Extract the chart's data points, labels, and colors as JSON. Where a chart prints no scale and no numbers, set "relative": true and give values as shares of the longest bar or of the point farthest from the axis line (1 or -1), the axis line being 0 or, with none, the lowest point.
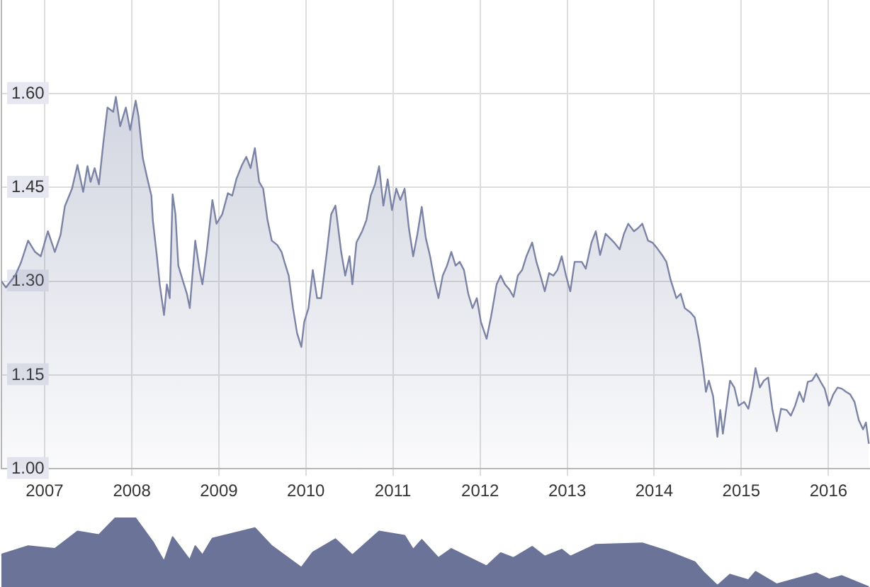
{
  "chart_data": [
    {
      "type": "area",
      "color": "#7c84a6",
      "grid": true,
      "xlim": [
        "2007-01-01",
        "2016-12-22"
      ],
      "ylim": [
        1.0,
        1.75
      ],
      "xticks": [
        {
          "value": "2007-07-01",
          "label": "2007"
        },
        {
          "value": "2008-07-01",
          "label": "2008"
        },
        {
          "value": "2009-07-01",
          "label": "2009"
        },
        {
          "value": "2010-07-01",
          "label": "2010"
        },
        {
          "value": "2011-07-01",
          "label": "2011"
        },
        {
          "value": "2012-07-01",
          "label": "2012"
        },
        {
          "value": "2013-07-01",
          "label": "2013"
        },
        {
          "value": "2014-07-01",
          "label": "2014"
        },
        {
          "value": "2015-07-01",
          "label": "2015"
        },
        {
          "value": "2016-07-01",
          "label": "2016"
        }
      ],
      "yticks": [
        {
          "value": 1.0,
          "label": "1.00"
        },
        {
          "value": 1.15,
          "label": "1.15"
        },
        {
          "value": 1.3,
          "label": "1.30"
        },
        {
          "value": 1.45,
          "label": "1.45"
        },
        {
          "value": 1.6,
          "label": "1.60"
        }
      ],
      "x": [
        "2007-01-01",
        "2007-01-20",
        "2007-03-01",
        "2007-03-24",
        "2007-04-23",
        "2007-05-22",
        "2007-06-15",
        "2007-07-15",
        "2007-08-13",
        "2007-09-06",
        "2007-09-24",
        "2007-10-24",
        "2007-11-16",
        "2007-12-10",
        "2007-12-28",
        "2008-01-10",
        "2008-01-27",
        "2008-02-14",
        "2008-03-03",
        "2008-03-21",
        "2008-04-14",
        "2008-04-25",
        "2008-05-13",
        "2008-06-06",
        "2008-06-24",
        "2008-07-17",
        "2008-07-29",
        "2008-08-16",
        "2008-09-03",
        "2008-09-21",
        "2008-09-27",
        "2008-10-14",
        "2008-10-26",
        "2008-11-13",
        "2008-11-25",
        "2008-12-07",
        "2008-12-19",
        "2008-12-31",
        "2009-01-12",
        "2009-01-30",
        "2009-02-17",
        "2009-03-01",
        "2009-03-24",
        "2009-04-11",
        "2009-04-23",
        "2009-05-11",
        "2009-06-04",
        "2009-06-21",
        "2009-07-15",
        "2009-08-08",
        "2009-08-26",
        "2009-09-13",
        "2009-10-06",
        "2009-10-24",
        "2009-11-11",
        "2009-11-29",
        "2009-12-17",
        "2010-01-03",
        "2010-01-21",
        "2010-02-08",
        "2010-03-03",
        "2010-03-21",
        "2010-04-02",
        "2010-04-20",
        "2010-05-08",
        "2010-05-25",
        "2010-06-12",
        "2010-06-24",
        "2010-07-12",
        "2010-07-30",
        "2010-08-17",
        "2010-09-03",
        "2010-09-27",
        "2010-10-15",
        "2010-11-02",
        "2010-11-26",
        "2010-12-13",
        "2010-12-31",
        "2011-01-12",
        "2011-01-29",
        "2011-02-22",
        "2011-03-12",
        "2011-03-30",
        "2011-04-17",
        "2011-05-04",
        "2011-05-22",
        "2011-06-09",
        "2011-06-27",
        "2011-07-15",
        "2011-08-01",
        "2011-08-19",
        "2011-09-06",
        "2011-09-24",
        "2011-10-12",
        "2011-10-30",
        "2011-11-16",
        "2011-12-04",
        "2011-12-22",
        "2012-01-08",
        "2012-01-26",
        "2012-02-13",
        "2012-03-02",
        "2012-03-20",
        "2012-04-06",
        "2012-04-24",
        "2012-05-12",
        "2012-05-30",
        "2012-06-17",
        "2012-07-04",
        "2012-07-28",
        "2012-08-15",
        "2012-09-08",
        "2012-09-25",
        "2012-10-13",
        "2012-10-31",
        "2012-11-18",
        "2012-12-06",
        "2012-12-24",
        "2013-01-11",
        "2013-02-04",
        "2013-02-22",
        "2013-03-11",
        "2013-03-29",
        "2013-04-16",
        "2013-05-04",
        "2013-05-21",
        "2013-06-08",
        "2013-06-26",
        "2013-07-14",
        "2013-08-01",
        "2013-08-31",
        "2013-09-17",
        "2013-10-11",
        "2013-10-29",
        "2013-11-16",
        "2013-12-09",
        "2013-12-27",
        "2014-01-14",
        "2014-02-06",
        "2014-02-24",
        "2014-03-14",
        "2014-04-07",
        "2014-04-24",
        "2014-05-12",
        "2014-06-05",
        "2014-06-23",
        "2014-07-11",
        "2014-08-03",
        "2014-08-21",
        "2014-09-08",
        "2014-10-02",
        "2014-10-20",
        "2014-11-06",
        "2014-11-30",
        "2014-12-18",
        "2015-01-05",
        "2015-01-22",
        "2015-02-03",
        "2015-02-15",
        "2015-03-05",
        "2015-03-23",
        "2015-04-04",
        "2015-04-15",
        "2015-05-03",
        "2015-05-15",
        "2015-06-02",
        "2015-06-20",
        "2015-07-13",
        "2015-07-31",
        "2015-08-18",
        "2015-08-30",
        "2015-09-17",
        "2015-10-04",
        "2015-10-22",
        "2015-11-09",
        "2015-11-27",
        "2015-12-15",
        "2016-01-07",
        "2016-01-25",
        "2016-02-12",
        "2016-03-01",
        "2016-03-18",
        "2016-04-05",
        "2016-04-23",
        "2016-05-11",
        "2016-05-29",
        "2016-06-15",
        "2016-07-03",
        "2016-07-21",
        "2016-08-08",
        "2016-08-26",
        "2016-09-13",
        "2016-09-30",
        "2016-10-18",
        "2016-11-05",
        "2016-11-23",
        "2016-12-05",
        "2016-12-17"
      ],
      "values": [
        1.3,
        1.29,
        1.31,
        1.33,
        1.365,
        1.347,
        1.34,
        1.38,
        1.347,
        1.374,
        1.42,
        1.448,
        1.486,
        1.443,
        1.484,
        1.459,
        1.481,
        1.455,
        1.52,
        1.578,
        1.571,
        1.595,
        1.548,
        1.578,
        1.542,
        1.589,
        1.564,
        1.497,
        1.466,
        1.437,
        1.398,
        1.34,
        1.295,
        1.246,
        1.295,
        1.273,
        1.439,
        1.407,
        1.325,
        1.302,
        1.28,
        1.257,
        1.365,
        1.318,
        1.295,
        1.347,
        1.43,
        1.392,
        1.407,
        1.441,
        1.437,
        1.464,
        1.486,
        1.499,
        1.481,
        1.513,
        1.459,
        1.448,
        1.398,
        1.365,
        1.358,
        1.347,
        1.331,
        1.309,
        1.257,
        1.217,
        1.195,
        1.235,
        1.257,
        1.318,
        1.273,
        1.273,
        1.347,
        1.407,
        1.421,
        1.347,
        1.309,
        1.34,
        1.295,
        1.362,
        1.38,
        1.398,
        1.437,
        1.455,
        1.484,
        1.421,
        1.463,
        1.414,
        1.448,
        1.43,
        1.448,
        1.385,
        1.34,
        1.376,
        1.419,
        1.369,
        1.34,
        1.302,
        1.273,
        1.309,
        1.325,
        1.347,
        1.325,
        1.331,
        1.318,
        1.28,
        1.257,
        1.273,
        1.235,
        1.208,
        1.242,
        1.295,
        1.309,
        1.295,
        1.287,
        1.275,
        1.309,
        1.318,
        1.34,
        1.362,
        1.331,
        1.309,
        1.284,
        1.313,
        1.309,
        1.318,
        1.34,
        1.309,
        1.284,
        1.331,
        1.331,
        1.32,
        1.362,
        1.38,
        1.342,
        1.376,
        1.369,
        1.362,
        1.351,
        1.376,
        1.392,
        1.38,
        1.385,
        1.392,
        1.365,
        1.362,
        1.354,
        1.342,
        1.331,
        1.302,
        1.273,
        1.28,
        1.257,
        1.25,
        1.242,
        1.206,
        1.161,
        1.123,
        1.141,
        1.116,
        1.051,
        1.094,
        1.056,
        1.107,
        1.141,
        1.13,
        1.101,
        1.107,
        1.096,
        1.13,
        1.161,
        1.13,
        1.141,
        1.146,
        1.094,
        1.06,
        1.096,
        1.094,
        1.085,
        1.101,
        1.123,
        1.107,
        1.139,
        1.141,
        1.152,
        1.139,
        1.128,
        1.101,
        1.119,
        1.13,
        1.128,
        1.123,
        1.119,
        1.107,
        1.078,
        1.063,
        1.074,
        1.04
      ]
    },
    {
      "type": "area",
      "color": "#6b7398",
      "relative": true,
      "tick_labels": false,
      "xlim": [
        "2007-01-01",
        "2016-12-22"
      ],
      "x": [
        "2007-01-01",
        "2007-04-23",
        "2007-08-13",
        "2007-11-16",
        "2008-02-14",
        "2008-04-25",
        "2008-07-17",
        "2008-09-27",
        "2008-11-13",
        "2008-12-19",
        "2009-03-01",
        "2009-03-24",
        "2009-04-23",
        "2009-06-04",
        "2009-11-29",
        "2010-02-08",
        "2010-06-12",
        "2010-07-30",
        "2010-11-02",
        "2011-01-12",
        "2011-05-04",
        "2011-08-19",
        "2011-09-24",
        "2011-10-30",
        "2012-01-08",
        "2012-03-02",
        "2012-07-28",
        "2012-09-25",
        "2012-11-18",
        "2013-02-04",
        "2013-03-29",
        "2013-06-08",
        "2013-07-14",
        "2013-10-29",
        "2014-05-12",
        "2014-08-21",
        "2014-12-18",
        "2015-01-22",
        "2015-03-23",
        "2015-05-15",
        "2015-07-31",
        "2015-08-30",
        "2015-11-27",
        "2016-05-11",
        "2016-07-03",
        "2016-08-26",
        "2016-12-17"
      ],
      "values": [
        0.47,
        0.59,
        0.55,
        0.8,
        0.75,
        1,
        0.99,
        0.65,
        0.37,
        0.72,
        0.39,
        0.59,
        0.46,
        0.7,
        0.85,
        0.59,
        0.28,
        0.5,
        0.69,
        0.46,
        0.8,
        0.74,
        0.54,
        0.68,
        0.42,
        0.55,
        0.3,
        0.49,
        0.42,
        0.58,
        0.44,
        0.54,
        0.44,
        0.61,
        0.63,
        0.52,
        0.36,
        0.22,
        0.02,
        0.18,
        0.1,
        0.22,
        0.04,
        0.2,
        0.11,
        0.16,
        0
      ]
    }
  ]
}
